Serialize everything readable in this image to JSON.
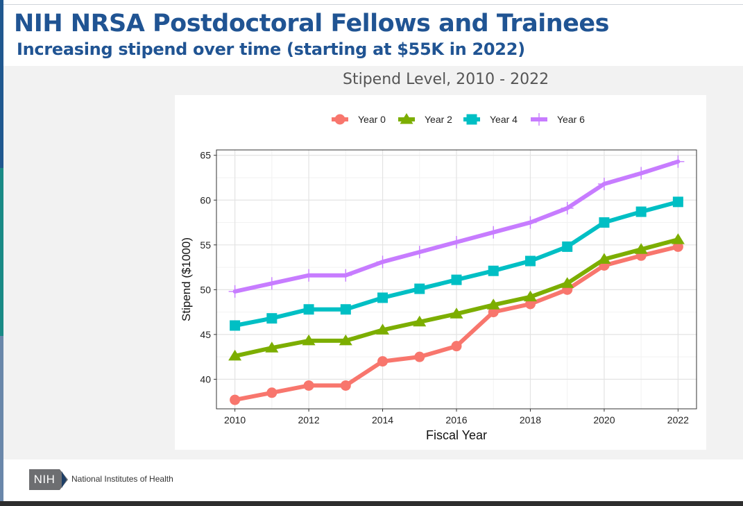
{
  "slide": {
    "title": "NIH NRSA Postdoctoral Fellows and Trainees",
    "subtitle": "Increasing stipend over time (starting at $55K in 2022)",
    "chart_heading": "Stipend Level, 2010 - 2022"
  },
  "footer": {
    "logo_text": "NIH",
    "org_name": "National Institutes of Health"
  },
  "chart_data": {
    "type": "line",
    "title": "Stipend Level, 2010 - 2022",
    "xlabel": "Fiscal Year",
    "ylabel": "Stipend ($1000)",
    "x": [
      2010,
      2011,
      2012,
      2013,
      2014,
      2015,
      2016,
      2017,
      2018,
      2019,
      2020,
      2021,
      2022
    ],
    "xlim": [
      2009.5,
      2022.5
    ],
    "ylim": [
      36.7,
      65.6
    ],
    "x_ticks": [
      2010,
      2012,
      2014,
      2016,
      2018,
      2020,
      2022
    ],
    "y_ticks": [
      40,
      45,
      50,
      55,
      60,
      65
    ],
    "grid": true,
    "legend_position": "top",
    "series": [
      {
        "name": "Year 0",
        "color": "#f8766d",
        "marker": "circle",
        "values": [
          37.7,
          38.5,
          39.3,
          39.3,
          42.0,
          42.5,
          43.7,
          47.5,
          48.4,
          50.0,
          52.7,
          53.8,
          54.8
        ]
      },
      {
        "name": "Year 2",
        "color": "#7cae00",
        "marker": "triangle",
        "values": [
          42.6,
          43.5,
          44.3,
          44.3,
          45.5,
          46.4,
          47.3,
          48.3,
          49.2,
          50.7,
          53.4,
          54.5,
          55.6
        ]
      },
      {
        "name": "Year 4",
        "color": "#00bfc4",
        "marker": "square",
        "values": [
          46.0,
          46.8,
          47.8,
          47.8,
          49.1,
          50.1,
          51.1,
          52.1,
          53.2,
          54.8,
          57.5,
          58.7,
          59.8
        ]
      },
      {
        "name": "Year 6",
        "color": "#c77cff",
        "marker": "plus",
        "values": [
          49.8,
          50.7,
          51.6,
          51.6,
          53.1,
          54.2,
          55.3,
          56.4,
          57.5,
          59.1,
          61.8,
          63.0,
          64.3
        ]
      }
    ]
  }
}
